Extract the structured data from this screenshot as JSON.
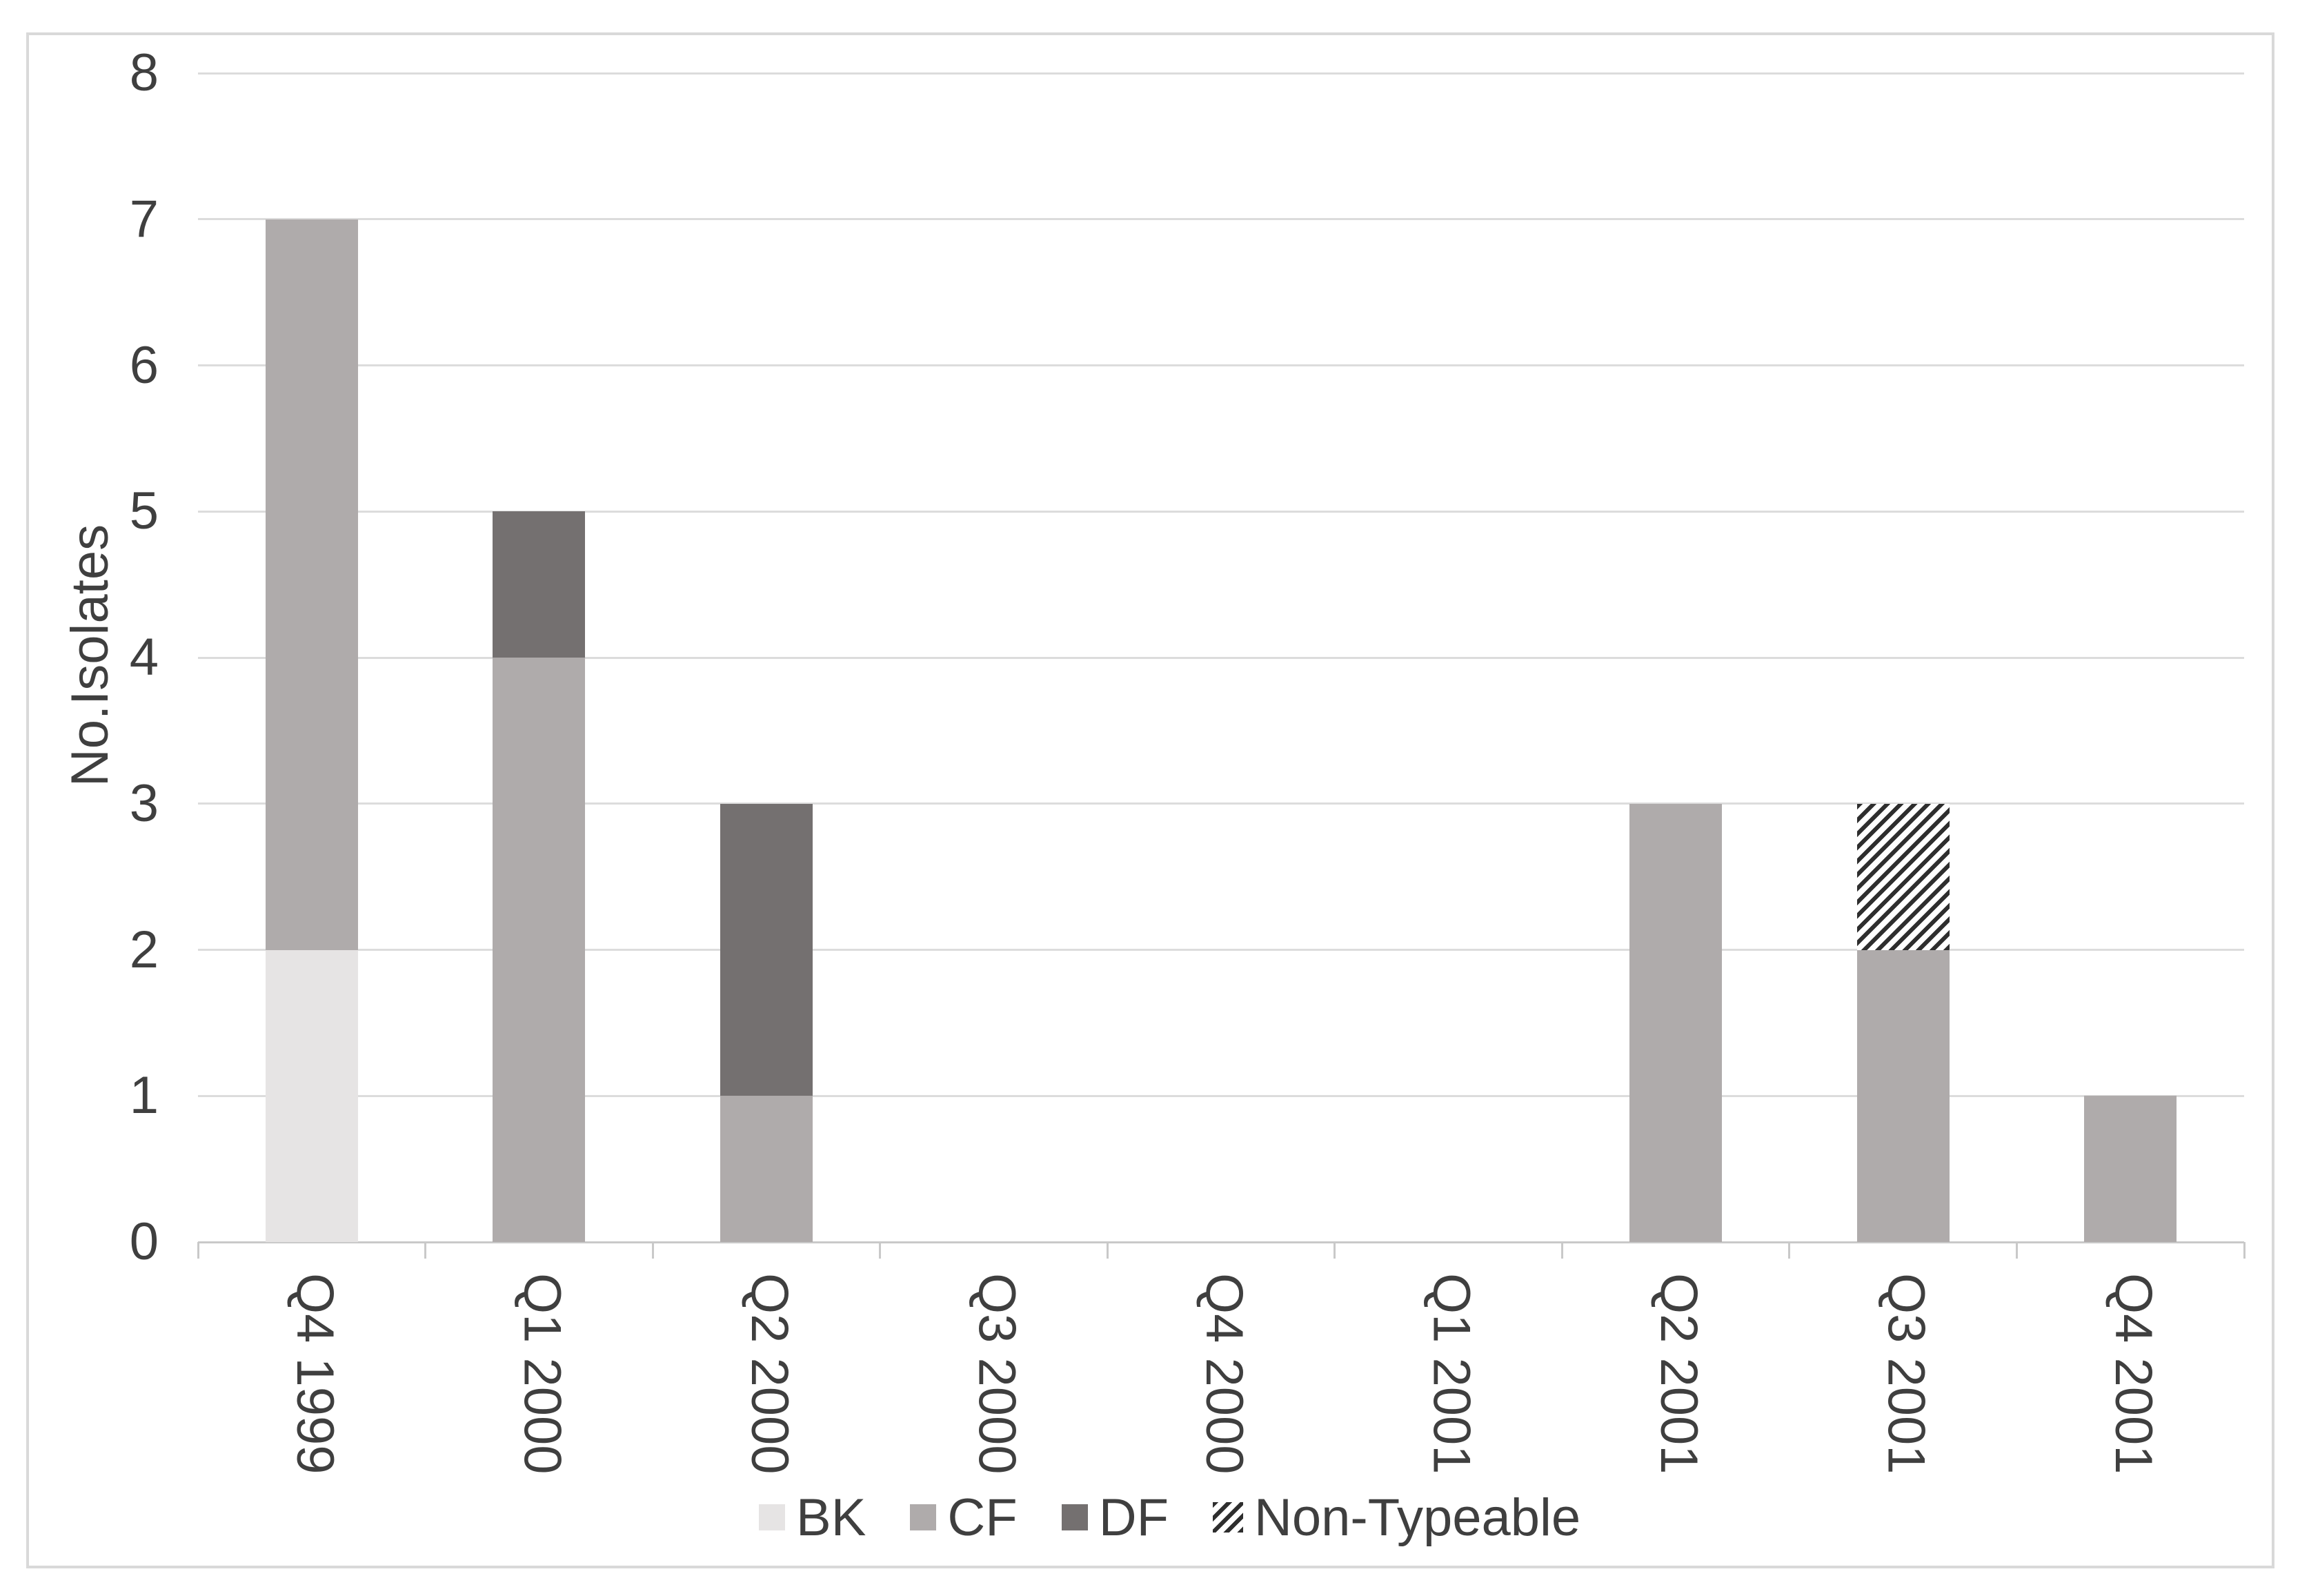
{
  "figure": {
    "background": "#ffffff",
    "border_color": "#d9d9d9",
    "text_color": "#3f3f3f",
    "gridline_color": "#dcdcdc",
    "axis_line_color": "#c9c9c9",
    "hatch_stripe_color": "#2e2e2e"
  },
  "chart_data": {
    "type": "bar",
    "stacked": true,
    "title": "",
    "xlabel": "",
    "ylabel": "No.Isolates",
    "ylim": [
      0,
      8
    ],
    "yticks": [
      0,
      1,
      2,
      3,
      4,
      5,
      6,
      7,
      8
    ],
    "grid": "horizontal",
    "legend_position": "bottom-center",
    "x_tick_label_rotation": "vertical-read-down",
    "categories": [
      "Q4 1999",
      "Q1 2000",
      "Q2 2000",
      "Q3 2000",
      "Q4 2000",
      "Q1 2001",
      "Q2 2001",
      "Q3 2001",
      "Q4 2001"
    ],
    "series": [
      {
        "name": "BK",
        "color": "#e6e4e4",
        "pattern": "solid",
        "values": [
          2,
          0,
          0,
          0,
          0,
          0,
          0,
          0,
          0
        ]
      },
      {
        "name": "CF",
        "color": "#afabab",
        "pattern": "solid",
        "values": [
          5,
          4,
          1,
          0,
          0,
          0,
          3,
          2,
          1
        ]
      },
      {
        "name": "DF",
        "color": "#747070",
        "pattern": "solid",
        "values": [
          0,
          1,
          2,
          0,
          0,
          0,
          0,
          0,
          0
        ]
      },
      {
        "name": "Non-Typeable",
        "color": "#2e2e2e",
        "pattern": "diagonal-hatch",
        "values": [
          0,
          0,
          0,
          0,
          0,
          0,
          0,
          1,
          0
        ]
      }
    ],
    "stack_totals": [
      7,
      5,
      3,
      0,
      0,
      0,
      3,
      3,
      1
    ]
  }
}
